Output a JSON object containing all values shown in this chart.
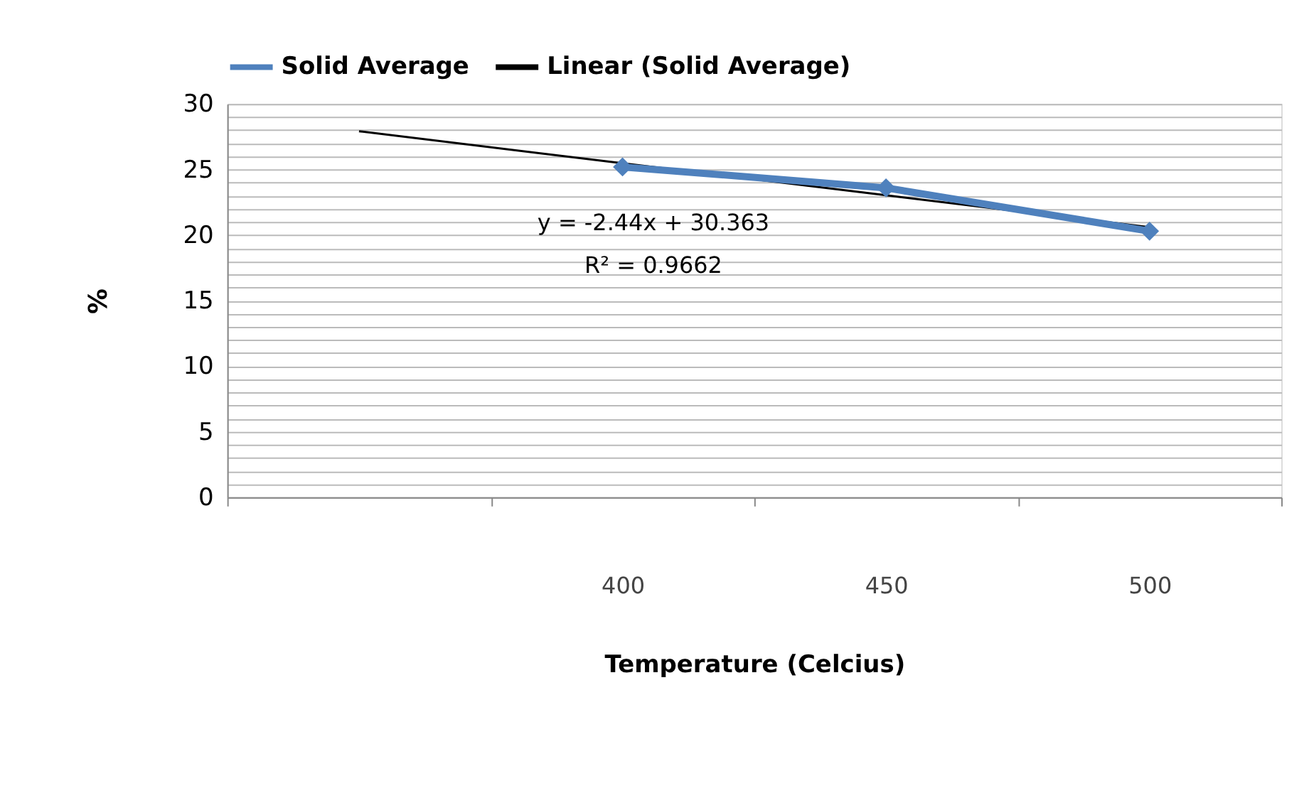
{
  "chart_data": {
    "type": "line",
    "xlabel": "Temperature (Celcius)",
    "ylabel": "%",
    "categories": [
      null,
      "400",
      "450",
      "500"
    ],
    "series": [
      {
        "name": "Solid Average",
        "color": "#4f81bd",
        "values": [
          null,
          25.2,
          23.6,
          20.3
        ],
        "marker": "diamond"
      },
      {
        "name": "Linear (Solid Average)",
        "color": "#000000",
        "values": [
          27.92,
          25.48,
          23.04,
          20.6
        ],
        "marker": "none"
      }
    ],
    "ylim": [
      0,
      30
    ],
    "yticks": [
      0,
      {
        "value": 1,
        "label": null
      },
      {
        "value": 2,
        "label": null
      },
      {
        "value": 3,
        "label": null
      },
      {
        "value": 4,
        "label": null
      },
      5,
      {
        "value": 6,
        "label": null
      },
      {
        "value": 7,
        "label": null
      },
      {
        "value": 8,
        "label": null
      },
      {
        "value": 9,
        "label": null
      },
      10,
      {
        "value": 11,
        "label": null
      },
      {
        "value": 12,
        "label": null
      },
      {
        "value": 13,
        "label": null
      },
      {
        "value": 14,
        "label": null
      },
      15,
      {
        "value": 16,
        "label": null
      },
      {
        "value": 17,
        "label": null
      },
      {
        "value": 18,
        "label": null
      },
      {
        "value": 19,
        "label": null
      },
      20,
      {
        "value": 21,
        "label": null
      },
      {
        "value": 22,
        "label": null
      },
      {
        "value": 23,
        "label": null
      },
      {
        "value": 24,
        "label": null
      },
      25,
      {
        "value": 26,
        "label": null
      },
      {
        "value": 27,
        "label": null
      },
      {
        "value": 28,
        "label": null
      },
      {
        "value": 29,
        "label": null
      },
      30
    ],
    "annotations": [
      "y = -2.44x + 30.363",
      "R² = 0.9662"
    ],
    "grid": "y",
    "legend": "top"
  }
}
